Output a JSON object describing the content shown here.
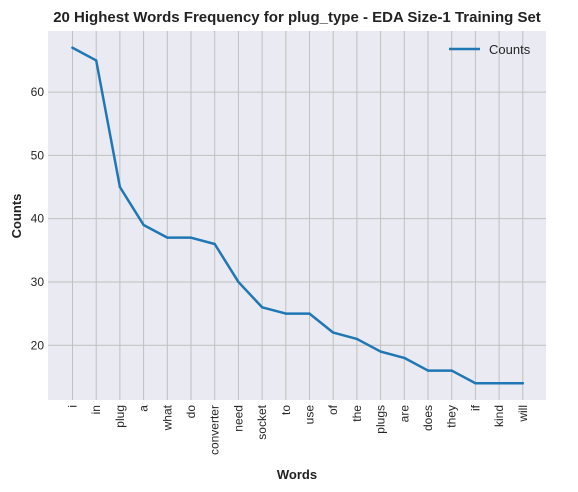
{
  "chart_data": {
    "type": "line",
    "title": "20 Highest Words Frequency for plug_type - EDA Size-1 Training Set",
    "xlabel": "Words",
    "ylabel": "Counts",
    "categories": [
      "i",
      "in",
      "plug",
      "a",
      "what",
      "do",
      "converter",
      "need",
      "socket",
      "to",
      "use",
      "of",
      "the",
      "plugs",
      "are",
      "does",
      "they",
      "if",
      "kind",
      "will"
    ],
    "series": [
      {
        "name": "Counts",
        "values": [
          67,
          65,
          45,
          39,
          37,
          37,
          36,
          30,
          26,
          25,
          25,
          22,
          21,
          19,
          18,
          16,
          16,
          14,
          14,
          14
        ]
      }
    ],
    "yticks": [
      20,
      30,
      40,
      50,
      60
    ],
    "ylim": [
      11.35,
      69.65
    ],
    "grid": true,
    "legend_position": "top-right",
    "colors": {
      "line": "#1f77b4",
      "plot_background": "#eaeaf2",
      "grid": "#c0c0c0"
    }
  }
}
